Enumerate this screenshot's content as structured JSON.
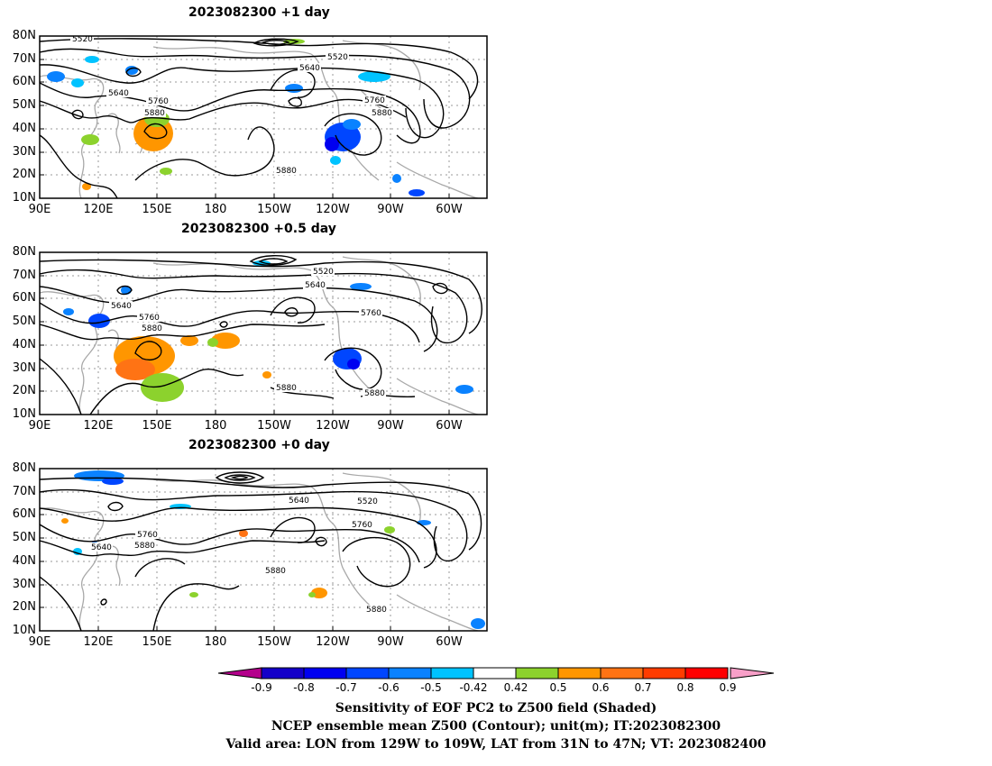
{
  "panels": [
    {
      "title": "2023082300  +1  day"
    },
    {
      "title": "2023082300  +0.5  day"
    },
    {
      "title": "2023082300  +0  day"
    }
  ],
  "lat_labels": [
    "80N",
    "70N",
    "60N",
    "50N",
    "40N",
    "30N",
    "20N",
    "10N"
  ],
  "lon_labels": [
    "90E",
    "120E",
    "150E",
    "180",
    "150W",
    "120W",
    "90W",
    "60W"
  ],
  "contour_labels": {
    "p0": [
      "5520",
      "5640",
      "5520",
      "5640",
      "5760",
      "5880",
      "5760",
      "5880",
      "5880"
    ],
    "p1": [
      "5520",
      "5640",
      "5640",
      "5760",
      "5880",
      "5760",
      "5880",
      "5880"
    ],
    "p2": [
      "5640",
      "5520",
      "5760",
      "5760",
      "5640",
      "5880",
      "5880",
      "5880"
    ]
  },
  "colorbar": {
    "labels": [
      "-0.9",
      "-0.8",
      "-0.7",
      "-0.6",
      "-0.5",
      "-0.42",
      "0.42",
      "0.5",
      "0.6",
      "0.7",
      "0.8",
      "0.9"
    ],
    "colors": {
      "low_tri": "#b4008c",
      "bins": [
        "#1400c8",
        "#0000f0",
        "#0046ff",
        "#0a82ff",
        "#00c3ff",
        "#ffffff",
        "#8cd22d",
        "#ff9600",
        "#ff7314",
        "#ff3c00",
        "#ff0000"
      ],
      "high_tri": "#f89fc8"
    }
  },
  "captions": [
    "Sensitivity of EOF PC2 to Z500 field (Shaded)",
    "NCEP ensemble mean Z500 (Contour); unit(m); IT:2023082300",
    "Valid area: LON from 129W to 109W, LAT from 31N to 47N; VT: 2023082400"
  ]
}
